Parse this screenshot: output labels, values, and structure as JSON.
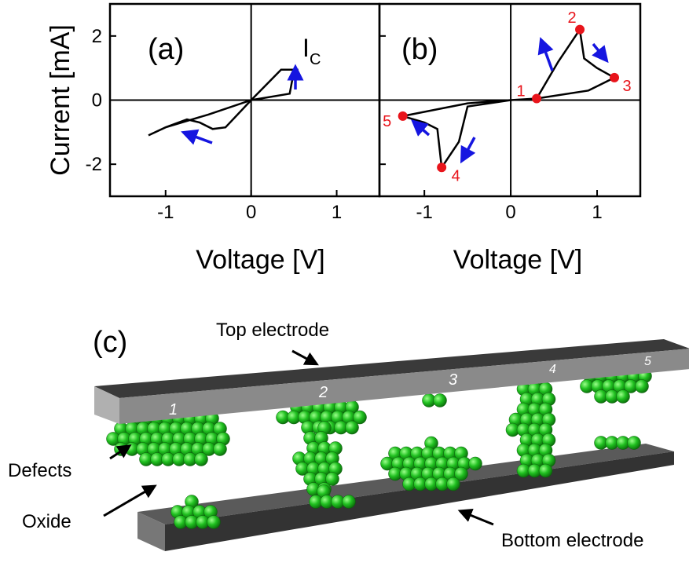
{
  "chart_data": [
    {
      "type": "line",
      "panel_label": "(a)",
      "ylabel": "Current [mA]",
      "xlabel": "Voltage [V]",
      "xlim": [
        -1.65,
        1.5
      ],
      "ylim": [
        -3,
        3
      ],
      "xticks": [
        -1,
        0,
        1
      ],
      "yticks": [
        -2,
        0,
        2
      ],
      "x": [
        -1.2,
        -1.0,
        -0.75,
        -0.6,
        -0.45,
        -0.3,
        0,
        0.35,
        0.55,
        0.5,
        0.45,
        0,
        -0.5,
        -1.0,
        -1.2
      ],
      "values": [
        -1.1,
        -0.85,
        -0.6,
        -0.7,
        -0.9,
        -0.85,
        0,
        0.95,
        0.95,
        0.9,
        0.2,
        0,
        -0.45,
        -0.85,
        -1.1
      ],
      "color": "#000000",
      "annotation": {
        "text": "I",
        "sub": "C"
      }
    },
    {
      "type": "line",
      "panel_label": "(b)",
      "xlabel": "Voltage [V]",
      "xlim": [
        -1.52,
        1.5
      ],
      "ylim": [
        -3,
        3
      ],
      "xticks": [
        -1,
        0,
        1
      ],
      "yticks": [
        -2,
        0,
        2
      ],
      "x": [
        0.3,
        0.55,
        0.8,
        0.85,
        1.0,
        1.2,
        0.9,
        0.3,
        0,
        -0.5,
        -1.25,
        -1.0,
        -0.85,
        -0.8,
        -0.6,
        -0.5,
        0
      ],
      "values": [
        0.05,
        1.2,
        2.2,
        1.3,
        1.0,
        0.7,
        0.3,
        0.05,
        0,
        -0.1,
        -0.5,
        -0.7,
        -0.9,
        -2.1,
        -1.3,
        -0.2,
        0
      ],
      "color": "#000000",
      "points": {
        "x": [
          0.3,
          0.8,
          1.2,
          -0.8,
          -1.25
        ],
        "values": [
          0.05,
          2.2,
          0.7,
          -2.1,
          -0.5
        ],
        "labels": [
          "1",
          "2",
          "3",
          "4",
          "5"
        ],
        "color": "#e8141b"
      }
    }
  ],
  "diagram": {
    "label": "(c)",
    "top_electrode": "Top electrode",
    "defects": "Defects",
    "oxide": "Oxide",
    "bottom_electrode": "Bottom electrode",
    "sites": [
      "1",
      "2",
      "3",
      "4",
      "5"
    ]
  }
}
